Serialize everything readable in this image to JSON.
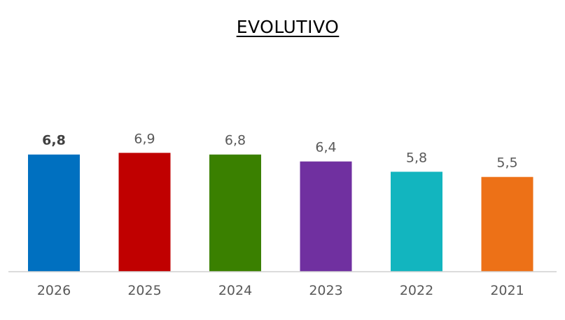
{
  "chart_data": {
    "type": "bar",
    "title": "EVOLUTIVO",
    "categories": [
      "2026",
      "2025",
      "2024",
      "2023",
      "2022",
      "2021"
    ],
    "values": [
      6.8,
      6.9,
      6.8,
      6.4,
      5.8,
      5.5
    ],
    "value_labels": [
      "6,8",
      "6,9",
      "6,8",
      "6,4",
      "5,8",
      "5,5"
    ],
    "colors": [
      "#0070C0",
      "#C00000",
      "#3A8000",
      "#7030A0",
      "#12B5BF",
      "#ED7117"
    ],
    "highlighted_category": "2026",
    "ylim": [
      0,
      7
    ],
    "grid": false,
    "legend": "none",
    "xlabel": "",
    "ylabel": ""
  }
}
